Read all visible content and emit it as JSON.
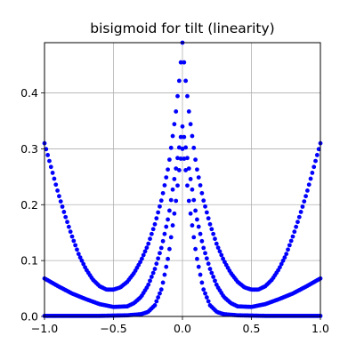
{
  "chart_data": {
    "type": "scatter",
    "title": "bisigmoid for tilt (linearity)",
    "xlabel": "",
    "ylabel": "",
    "xlim": [
      -1.0,
      1.0
    ],
    "ylim": [
      0.0,
      0.49
    ],
    "x_ticks": [
      -1.0,
      -0.5,
      0.0,
      0.5,
      1.0
    ],
    "x_tick_labels": [
      "−1.0",
      "−0.5",
      "0.0",
      "0.5",
      "1.0"
    ],
    "y_ticks": [
      0.0,
      0.1,
      0.2,
      0.3,
      0.4
    ],
    "y_tick_labels": [
      "0.0",
      "0.1",
      "0.2",
      "0.3",
      "0.4"
    ],
    "grid": true,
    "legend": "none",
    "marker_color": "#0000ff",
    "series": [
      {
        "x": [
          -1.0,
          -0.95,
          -0.9,
          -0.85,
          -0.8,
          -0.75,
          -0.7,
          -0.65,
          -0.6,
          -0.55,
          -0.5,
          -0.45,
          -0.4,
          -0.35,
          -0.3,
          -0.25,
          -0.2,
          -0.15,
          -0.1,
          -0.05,
          -0.02,
          0.0,
          0.02,
          0.05,
          0.1,
          0.15,
          0.2,
          0.25,
          0.3,
          0.35,
          0.4,
          0.45,
          0.5,
          0.55,
          0.6,
          0.65,
          0.7,
          0.75,
          0.8,
          0.85,
          0.9,
          0.95,
          1.0
        ],
        "y": [
          0.31,
          0.265,
          0.22,
          0.18,
          0.143,
          0.11,
          0.085,
          0.066,
          0.054,
          0.048,
          0.048,
          0.052,
          0.062,
          0.078,
          0.1,
          0.128,
          0.165,
          0.21,
          0.27,
          0.36,
          0.43,
          0.49,
          0.43,
          0.36,
          0.27,
          0.21,
          0.165,
          0.128,
          0.1,
          0.078,
          0.062,
          0.052,
          0.048,
          0.048,
          0.054,
          0.066,
          0.085,
          0.11,
          0.143,
          0.18,
          0.22,
          0.265,
          0.31
        ]
      },
      {
        "x": [
          -1.0,
          -0.9,
          -0.8,
          -0.7,
          -0.6,
          -0.5,
          -0.4,
          -0.35,
          -0.3,
          -0.25,
          -0.2,
          -0.15,
          -0.1,
          -0.05,
          0.0,
          0.05,
          0.1,
          0.15,
          0.2,
          0.25,
          0.3,
          0.35,
          0.4,
          0.5,
          0.6,
          0.7,
          0.8,
          0.9,
          1.0
        ],
        "y": [
          0.068,
          0.054,
          0.041,
          0.031,
          0.022,
          0.017,
          0.018,
          0.024,
          0.035,
          0.055,
          0.085,
          0.125,
          0.18,
          0.26,
          0.34,
          0.26,
          0.18,
          0.125,
          0.085,
          0.055,
          0.035,
          0.024,
          0.018,
          0.017,
          0.022,
          0.031,
          0.041,
          0.054,
          0.068
        ]
      },
      {
        "x": [
          -1.0,
          -0.8,
          -0.6,
          -0.4,
          -0.3,
          -0.25,
          -0.2,
          -0.15,
          -0.1,
          -0.05,
          -0.02,
          0.0,
          0.02,
          0.05,
          0.1,
          0.15,
          0.2,
          0.25,
          0.3,
          0.4,
          0.6,
          0.8,
          1.0
        ],
        "y": [
          0.001,
          0.001,
          0.001,
          0.002,
          0.004,
          0.008,
          0.02,
          0.05,
          0.11,
          0.2,
          0.27,
          0.3,
          0.27,
          0.2,
          0.11,
          0.05,
          0.02,
          0.008,
          0.004,
          0.002,
          0.001,
          0.001,
          0.001
        ]
      }
    ]
  }
}
